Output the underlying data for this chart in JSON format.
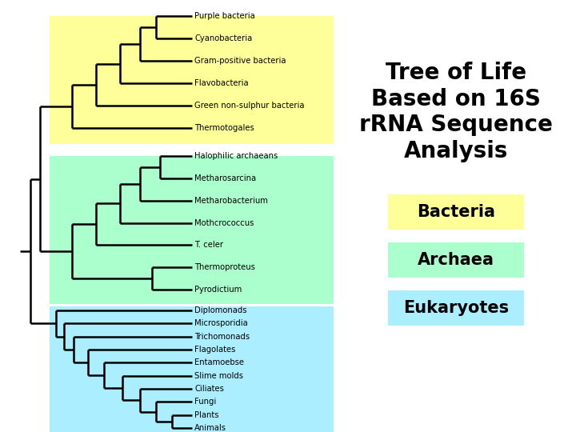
{
  "title": "Tree of Life\nBased on 16S\nrRNA Sequence\nAnalysis",
  "title_fontsize": 20,
  "title_fontweight": "bold",
  "bg_color": "#ffffff",
  "bacteria_color": "#ffff99",
  "archaea_color": "#aaffcc",
  "eukaryotes_color": "#aaeeff",
  "legend_bacteria": "Bacteria",
  "legend_archaea": "Archaea",
  "legend_eukaryotes": "Eukaryotes",
  "bacteria_labels": [
    "Purple bacteria",
    "Cyanobacteria",
    "Gram-positive bacteria",
    "Flavobacteria",
    "Green non-sulphur bacteria",
    "Thermotogales"
  ],
  "archaea_labels": [
    "Halophilic archaeans",
    "Metharosarcina",
    "Metharobacterium",
    "Mothcrococcus",
    "T. celer",
    "Thermoproteus",
    "Pyrodictium"
  ],
  "eukaryotes_labels": [
    "Diplomonads",
    "Microsporidia",
    "Trichomonads",
    "Flagolates",
    "Entamoebse",
    "Slime molds",
    "Ciliates",
    "Fungi",
    "Plants",
    "Animals"
  ]
}
